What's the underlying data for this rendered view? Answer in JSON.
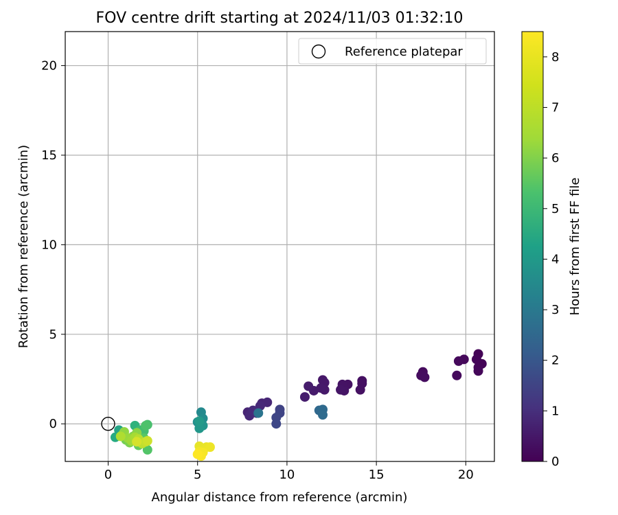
{
  "chart_data": {
    "type": "scatter",
    "title": "FOV centre drift starting at 2024/11/03 01:32:10",
    "xlabel": "Angular distance from reference (arcmin)",
    "ylabel": "Rotation from reference (arcmin)",
    "xlim": [
      -2.4,
      21.6
    ],
    "ylim": [
      -2.1,
      21.9
    ],
    "x_ticks": [
      0,
      5,
      10,
      15,
      20
    ],
    "y_ticks": [
      0,
      5,
      10,
      15,
      20
    ],
    "grid": true,
    "legend": {
      "position": "top-right",
      "entries": [
        "Reference platepar"
      ]
    },
    "reference_point": {
      "x": 0,
      "y": 0,
      "label": "Reference platepar"
    },
    "colorbar": {
      "label": "Hours from first FF file",
      "colormap": "viridis",
      "range": [
        0,
        8.5
      ],
      "ticks": [
        0,
        1,
        2,
        3,
        4,
        5,
        6,
        7,
        8
      ]
    },
    "points": [
      {
        "x": 20.7,
        "y": 3.9,
        "c": 0.05
      },
      {
        "x": 20.9,
        "y": 3.35,
        "c": 0.08
      },
      {
        "x": 20.6,
        "y": 3.6,
        "c": 0.1
      },
      {
        "x": 20.7,
        "y": 3.15,
        "c": 0.12
      },
      {
        "x": 20.7,
        "y": 2.95,
        "c": 0.15
      },
      {
        "x": 19.9,
        "y": 3.6,
        "c": 0.18
      },
      {
        "x": 19.6,
        "y": 3.5,
        "c": 0.2
      },
      {
        "x": 19.5,
        "y": 2.7,
        "c": 0.22
      },
      {
        "x": 17.6,
        "y": 2.9,
        "c": 0.25
      },
      {
        "x": 17.5,
        "y": 2.7,
        "c": 0.28
      },
      {
        "x": 17.7,
        "y": 2.6,
        "c": 0.3
      },
      {
        "x": 14.2,
        "y": 2.4,
        "c": 0.35
      },
      {
        "x": 14.2,
        "y": 2.25,
        "c": 0.38
      },
      {
        "x": 14.1,
        "y": 1.9,
        "c": 0.4
      },
      {
        "x": 13.4,
        "y": 2.2,
        "c": 0.42
      },
      {
        "x": 13.1,
        "y": 2.2,
        "c": 0.45
      },
      {
        "x": 13.2,
        "y": 1.85,
        "c": 0.48
      },
      {
        "x": 13.0,
        "y": 1.9,
        "c": 0.5
      },
      {
        "x": 12.0,
        "y": 2.45,
        "c": 0.55
      },
      {
        "x": 12.1,
        "y": 2.3,
        "c": 0.58
      },
      {
        "x": 12.1,
        "y": 1.9,
        "c": 0.6
      },
      {
        "x": 11.9,
        "y": 2.0,
        "c": 0.62
      },
      {
        "x": 11.5,
        "y": 1.85,
        "c": 0.65
      },
      {
        "x": 11.2,
        "y": 2.1,
        "c": 0.68
      },
      {
        "x": 11.0,
        "y": 1.5,
        "c": 0.7
      },
      {
        "x": 8.6,
        "y": 1.15,
        "c": 0.9
      },
      {
        "x": 8.9,
        "y": 1.2,
        "c": 0.95
      },
      {
        "x": 8.5,
        "y": 1.0,
        "c": 1.0
      },
      {
        "x": 7.8,
        "y": 0.65,
        "c": 0.9
      },
      {
        "x": 8.0,
        "y": 0.6,
        "c": 0.95
      },
      {
        "x": 7.9,
        "y": 0.45,
        "c": 1.0
      },
      {
        "x": 8.1,
        "y": 0.75,
        "c": 1.05
      },
      {
        "x": 8.3,
        "y": 0.6,
        "c": 1.1
      },
      {
        "x": 9.6,
        "y": 0.8,
        "c": 1.7
      },
      {
        "x": 9.6,
        "y": 0.6,
        "c": 1.75
      },
      {
        "x": 9.4,
        "y": 0.35,
        "c": 1.8
      },
      {
        "x": 9.4,
        "y": 0.0,
        "c": 1.85
      },
      {
        "x": 8.4,
        "y": 0.6,
        "c": 3.3
      },
      {
        "x": 11.8,
        "y": 0.75,
        "c": 2.9
      },
      {
        "x": 12.0,
        "y": 0.8,
        "c": 2.95
      },
      {
        "x": 12.0,
        "y": 0.5,
        "c": 3.0
      },
      {
        "x": 5.2,
        "y": 0.65,
        "c": 4.0
      },
      {
        "x": 5.3,
        "y": 0.3,
        "c": 4.1
      },
      {
        "x": 5.0,
        "y": 0.1,
        "c": 4.2
      },
      {
        "x": 5.2,
        "y": 0.0,
        "c": 4.3
      },
      {
        "x": 5.3,
        "y": -0.1,
        "c": 4.4
      },
      {
        "x": 5.1,
        "y": -0.25,
        "c": 4.5
      },
      {
        "x": 5.1,
        "y": 0.15,
        "c": 4.6
      },
      {
        "x": 0.6,
        "y": -0.35,
        "c": 5.0
      },
      {
        "x": 0.4,
        "y": -0.75,
        "c": 5.2
      },
      {
        "x": 1.5,
        "y": -0.1,
        "c": 5.5
      },
      {
        "x": 1.8,
        "y": -0.35,
        "c": 5.8
      },
      {
        "x": 2.0,
        "y": -0.4,
        "c": 5.9
      },
      {
        "x": 2.2,
        "y": -0.05,
        "c": 6.0
      },
      {
        "x": 2.1,
        "y": -0.1,
        "c": 6.1
      },
      {
        "x": 2.2,
        "y": -1.45,
        "c": 6.2
      },
      {
        "x": 2.0,
        "y": -0.8,
        "c": 6.3
      },
      {
        "x": 1.9,
        "y": -1.0,
        "c": 6.4
      },
      {
        "x": 1.7,
        "y": -1.2,
        "c": 6.5
      },
      {
        "x": 0.8,
        "y": -0.6,
        "c": 6.6
      },
      {
        "x": 1.0,
        "y": -0.9,
        "c": 6.7
      },
      {
        "x": 1.2,
        "y": -1.05,
        "c": 6.8
      },
      {
        "x": 1.4,
        "y": -0.7,
        "c": 6.9
      },
      {
        "x": 1.6,
        "y": -0.5,
        "c": 7.0
      },
      {
        "x": 0.9,
        "y": -0.45,
        "c": 7.1
      },
      {
        "x": 1.1,
        "y": -0.8,
        "c": 7.2
      },
      {
        "x": 1.3,
        "y": -0.95,
        "c": 7.3
      },
      {
        "x": 1.5,
        "y": -0.75,
        "c": 7.4
      },
      {
        "x": 0.7,
        "y": -0.7,
        "c": 7.5
      },
      {
        "x": 1.7,
        "y": -0.85,
        "c": 7.6
      },
      {
        "x": 1.9,
        "y": -1.1,
        "c": 7.7
      },
      {
        "x": 2.1,
        "y": -1.0,
        "c": 7.8
      },
      {
        "x": 2.2,
        "y": -0.95,
        "c": 7.9
      },
      {
        "x": 1.6,
        "y": -1.0,
        "c": 8.0
      },
      {
        "x": 5.1,
        "y": -1.25,
        "c": 8.2
      },
      {
        "x": 5.5,
        "y": -1.3,
        "c": 8.25
      },
      {
        "x": 5.7,
        "y": -1.3,
        "c": 8.3
      },
      {
        "x": 5.1,
        "y": -1.55,
        "c": 8.35
      },
      {
        "x": 5.3,
        "y": -1.6,
        "c": 8.4
      },
      {
        "x": 5.2,
        "y": -1.8,
        "c": 8.45
      },
      {
        "x": 5.0,
        "y": -1.7,
        "c": 8.5
      }
    ]
  }
}
